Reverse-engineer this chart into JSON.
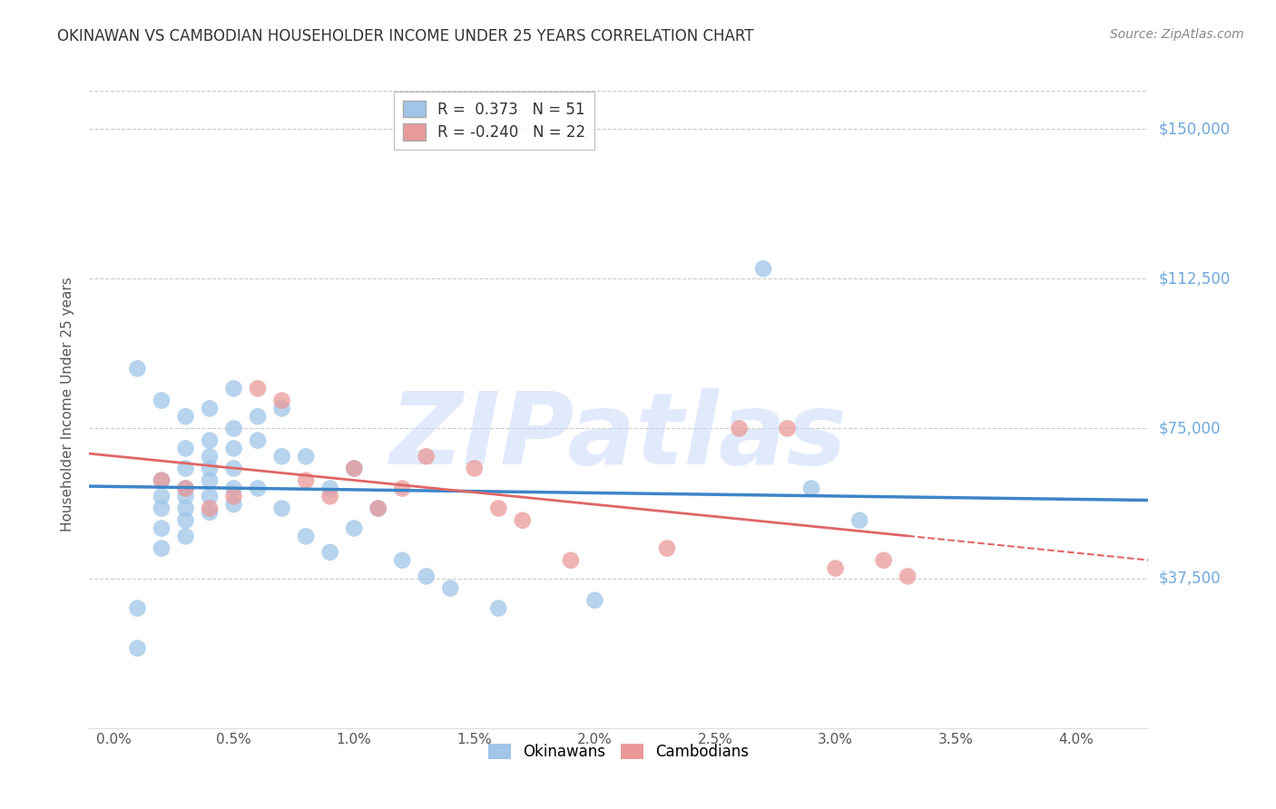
{
  "title": "OKINAWAN VS CAMBODIAN HOUSEHOLDER INCOME UNDER 25 YEARS CORRELATION CHART",
  "source": "Source: ZipAtlas.com",
  "ylabel": "Householder Income Under 25 years",
  "xlabel_ticks": [
    "0.0%",
    "0.5%",
    "1.0%",
    "1.5%",
    "2.0%",
    "2.5%",
    "3.0%",
    "3.5%",
    "4.0%"
  ],
  "xlabel_vals": [
    0.0,
    0.005,
    0.01,
    0.015,
    0.02,
    0.025,
    0.03,
    0.035,
    0.04
  ],
  "ytick_labels": [
    "$37,500",
    "$75,000",
    "$112,500",
    "$150,000"
  ],
  "ytick_vals": [
    37500,
    75000,
    112500,
    150000
  ],
  "ylim": [
    0,
    162000
  ],
  "xlim": [
    -0.001,
    0.043
  ],
  "okinawan_color": "#9fc5e8",
  "cambodian_color": "#ea9999",
  "okinawan_line_color": "#3d85c8",
  "cambodian_line_solid_color": "#e06666",
  "cambodian_line_dash_color": "#e06666",
  "r_okinawan": "0.373",
  "n_okinawan": "51",
  "r_cambodian": "-0.240",
  "n_cambodian": "22",
  "watermark": "ZIPatlas",
  "watermark_color": "#c9daf8",
  "legend_label_okinawan": "Okinawans",
  "legend_label_cambodian": "Cambodians",
  "okinawan_x": [
    0.001,
    0.001,
    0.002,
    0.002,
    0.002,
    0.002,
    0.002,
    0.003,
    0.003,
    0.003,
    0.003,
    0.003,
    0.003,
    0.003,
    0.004,
    0.004,
    0.004,
    0.004,
    0.004,
    0.004,
    0.005,
    0.005,
    0.005,
    0.005,
    0.005,
    0.006,
    0.006,
    0.006,
    0.007,
    0.007,
    0.007,
    0.008,
    0.008,
    0.009,
    0.009,
    0.01,
    0.01,
    0.011,
    0.012,
    0.013,
    0.014,
    0.016,
    0.02,
    0.027,
    0.029,
    0.031,
    0.001,
    0.002,
    0.003,
    0.004,
    0.005
  ],
  "okinawan_y": [
    30000,
    20000,
    62000,
    58000,
    55000,
    50000,
    45000,
    70000,
    65000,
    60000,
    58000,
    55000,
    52000,
    48000,
    72000,
    68000,
    65000,
    62000,
    58000,
    54000,
    75000,
    70000,
    65000,
    60000,
    56000,
    78000,
    72000,
    60000,
    80000,
    68000,
    55000,
    68000,
    48000,
    60000,
    44000,
    65000,
    50000,
    55000,
    42000,
    38000,
    35000,
    30000,
    32000,
    115000,
    60000,
    52000,
    90000,
    82000,
    78000,
    80000,
    85000
  ],
  "cambodian_x": [
    0.002,
    0.003,
    0.004,
    0.005,
    0.006,
    0.007,
    0.008,
    0.009,
    0.01,
    0.011,
    0.012,
    0.013,
    0.015,
    0.016,
    0.017,
    0.019,
    0.023,
    0.026,
    0.028,
    0.03,
    0.032,
    0.033
  ],
  "cambodian_y": [
    62000,
    60000,
    55000,
    58000,
    85000,
    82000,
    62000,
    58000,
    65000,
    55000,
    60000,
    68000,
    65000,
    55000,
    52000,
    42000,
    45000,
    75000,
    75000,
    40000,
    42000,
    38000
  ],
  "background_color": "#ffffff",
  "grid_color": "#cccccc",
  "axis_color": "#cccccc",
  "right_label_color": "#6fa8dc",
  "title_fontsize": 12,
  "source_fontsize": 10,
  "tick_fontsize": 11,
  "ylabel_fontsize": 11
}
